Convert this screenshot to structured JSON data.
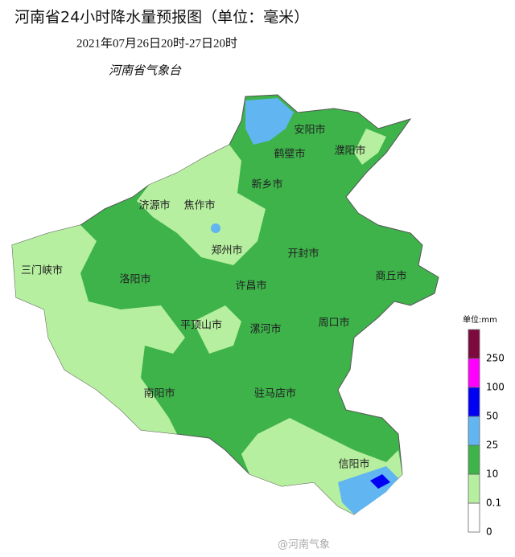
{
  "header": {
    "title": "河南省24小时降水量预报图（单位：毫米）",
    "period": "2021年07月26日20时-27日20时",
    "agency": "河南省气象台"
  },
  "cities": [
    "安阳市",
    "鹤壁市",
    "濮阳市",
    "新乡市",
    "济源市",
    "焦作市",
    "郑州市",
    "开封市",
    "三门峡市",
    "洛阳市",
    "许昌市",
    "商丘市",
    "平顶山市",
    "漯河市",
    "周口市",
    "南阳市",
    "驻马店市",
    "信阳市"
  ],
  "legend": {
    "title": "单位:mm",
    "levels": [
      0,
      0.1,
      10,
      25,
      50,
      100,
      250
    ],
    "colors": [
      "#ffffff",
      "#b6ef9f",
      "#3db34a",
      "#61b5f0",
      "#0000f5",
      "#ff00ff",
      "#7d0a3c"
    ]
  },
  "watermark": "@河南气象"
}
